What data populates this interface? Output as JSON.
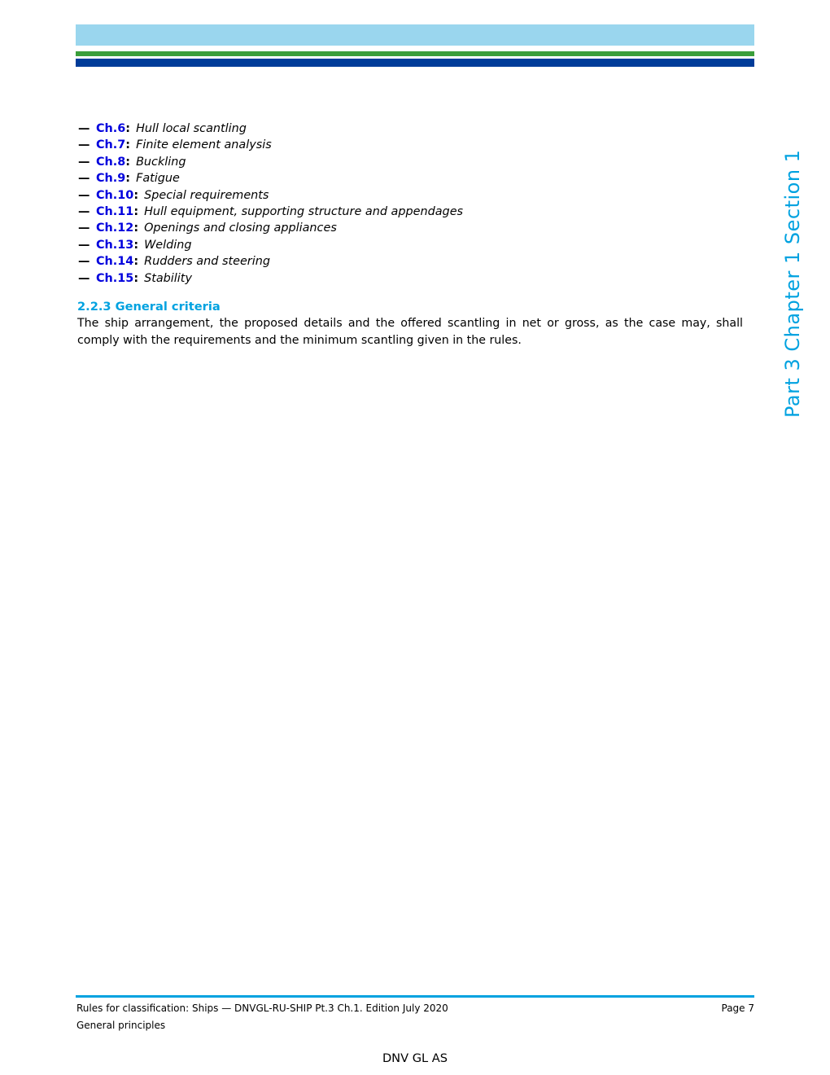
{
  "colors": {
    "header_band_light_blue": "#9AD6EE",
    "stripe_green": "#3A9E3A",
    "stripe_navy": "#003C99",
    "accent_cyan": "#00A2E0",
    "link_blue": "#0000DD",
    "text_black": "#000000"
  },
  "list": {
    "bullet": "—",
    "separator": ":"
  },
  "chapters": [
    {
      "ref": "Ch.6",
      "title": "Hull local scantling"
    },
    {
      "ref": "Ch.7",
      "title": "Finite element analysis"
    },
    {
      "ref": "Ch.8",
      "title": "Buckling"
    },
    {
      "ref": "Ch.9",
      "title": "Fatigue"
    },
    {
      "ref": "Ch.10",
      "title": "Special requirements"
    },
    {
      "ref": "Ch.11",
      "title": "Hull equipment, supporting structure and appendages"
    },
    {
      "ref": "Ch.12",
      "title": "Openings and closing appliances"
    },
    {
      "ref": "Ch.13",
      "title": "Welding"
    },
    {
      "ref": "Ch.14",
      "title": "Rudders and steering"
    },
    {
      "ref": "Ch.15",
      "title": "Stability"
    }
  ],
  "section": {
    "heading": "2.2.3 General criteria",
    "body": "The ship arrangement, the proposed details and the offered scantling in net or gross, as the case may, shall comply with the requirements and the minimum scantling given in the rules."
  },
  "sidebar": {
    "label": "Part 3 Chapter 1 Section 1"
  },
  "footer": {
    "doc_line": "Rules for classification: Ships — DNVGL-RU-SHIP Pt.3 Ch.1. Edition July 2020",
    "page_label": "Page 7",
    "section_line": "General principles",
    "company": "DNV GL AS"
  }
}
